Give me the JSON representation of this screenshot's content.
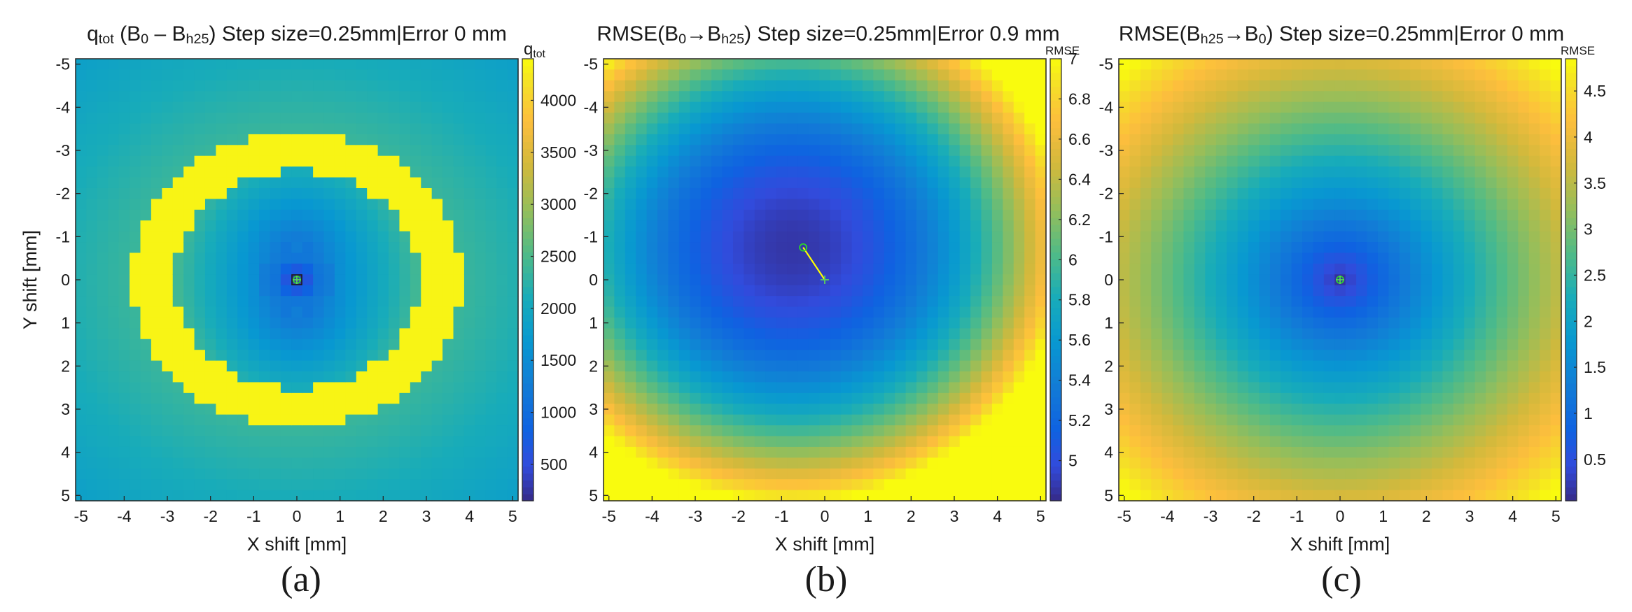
{
  "figure": {
    "panel_letters": [
      "(a)",
      "(b)",
      "(c)"
    ]
  },
  "chart_data": [
    {
      "type": "heatmap",
      "id": "a",
      "title": {
        "parts": [
          {
            "t": "q"
          },
          {
            "t": "tot",
            "sub": true
          },
          {
            "t": " (B"
          },
          {
            "t": "0",
            "sub": true
          },
          {
            "t": " – B"
          },
          {
            "t": "h25",
            "sub": true
          },
          {
            "t": ") Step size=0.25mm|Error 0 mm"
          }
        ]
      },
      "xlabel": "X shift [mm]",
      "ylabel": "Y shift [mm]",
      "xlim": [
        -5,
        5
      ],
      "ylim": [
        -5,
        5
      ],
      "y_reversed": true,
      "xticks": [
        -5,
        -4,
        -3,
        -2,
        -1,
        0,
        1,
        2,
        3,
        4,
        5
      ],
      "yticks": [
        -5,
        -4,
        -3,
        -2,
        -1,
        0,
        1,
        2,
        3,
        4,
        5
      ],
      "grid_step_mm": 0.25,
      "colorbar": {
        "label": {
          "parts": [
            {
              "t": "q"
            },
            {
              "t": "tot",
              "sub": true
            }
          ]
        },
        "min": 150,
        "max": 4400,
        "ticks": [
          500,
          1000,
          1500,
          2000,
          2500,
          3000,
          3500,
          4000
        ]
      },
      "field": "ring",
      "field_description": "Low values (~150) at origin, bright ring (~4400) for radius 2.8–3.7 mm (wider in x), ~2000–2500 outside",
      "markers": {
        "true": [
          0,
          0
        ],
        "estimate": [
          0,
          0
        ]
      },
      "estimate_error_mm": 0
    },
    {
      "type": "heatmap",
      "id": "b",
      "title": {
        "parts": [
          {
            "t": "RMSE(B"
          },
          {
            "t": "0",
            "sub": true
          },
          {
            "t": "→B"
          },
          {
            "t": "h25",
            "sub": true
          },
          {
            "t": ") Step size=0.25mm|Error 0.9 mm"
          }
        ]
      },
      "xlabel": "X shift [mm]",
      "ylabel": "",
      "xlim": [
        -5,
        5
      ],
      "ylim": [
        -5,
        5
      ],
      "y_reversed": true,
      "xticks": [
        -5,
        -4,
        -3,
        -2,
        -1,
        0,
        1,
        2,
        3,
        4,
        5
      ],
      "yticks": [
        -5,
        -4,
        -3,
        -2,
        -1,
        0,
        1,
        2,
        3,
        4,
        5
      ],
      "grid_step_mm": 0.25,
      "colorbar": {
        "label": {
          "parts": [
            {
              "t": "RMSE"
            }
          ]
        },
        "min": 4.8,
        "max": 7.0,
        "ticks": [
          5,
          5.2,
          5.4,
          5.6,
          5.8,
          6,
          6.2,
          6.4,
          6.6,
          6.8,
          7
        ]
      },
      "field": "bowl_offset",
      "field_description": "Minimum ~4.8 near (-0.75, -0.75), rising to ~7.0 at lower-right corner",
      "markers": {
        "true": [
          0,
          0
        ],
        "estimate": [
          -0.5,
          -0.75
        ]
      },
      "estimate_error_mm": 0.9
    },
    {
      "type": "heatmap",
      "id": "c",
      "title": {
        "parts": [
          {
            "t": "RMSE(B"
          },
          {
            "t": "h25",
            "sub": true
          },
          {
            "t": "→B"
          },
          {
            "t": "0",
            "sub": true
          },
          {
            "t": ") Step size=0.25mm|Error 0 mm"
          }
        ]
      },
      "xlabel": "X shift [mm]",
      "ylabel": "",
      "xlim": [
        -5,
        5
      ],
      "ylim": [
        -5,
        5
      ],
      "y_reversed": true,
      "xticks": [
        -5,
        -4,
        -3,
        -2,
        -1,
        0,
        1,
        2,
        3,
        4,
        5
      ],
      "yticks": [
        -5,
        -4,
        -3,
        -2,
        -1,
        0,
        1,
        2,
        3,
        4,
        5
      ],
      "grid_step_mm": 0.25,
      "colorbar": {
        "label": {
          "parts": [
            {
              "t": "RMSE"
            }
          ]
        },
        "min": 0.05,
        "max": 4.85,
        "ticks": [
          0.5,
          1,
          1.5,
          2,
          2.5,
          3,
          3.5,
          4,
          4.5
        ]
      },
      "field": "bowl_center",
      "field_description": "Minimum ~0.05 at origin, rising to ~4.85 at corners",
      "markers": {
        "true": [
          0,
          0
        ],
        "estimate": [
          0,
          0
        ]
      },
      "estimate_error_mm": 0
    }
  ],
  "colors": {
    "marker_cross": "#5bd15b",
    "marker_circle": "#2bd42b",
    "error_line": "#ffff00",
    "axis": "#262626"
  }
}
